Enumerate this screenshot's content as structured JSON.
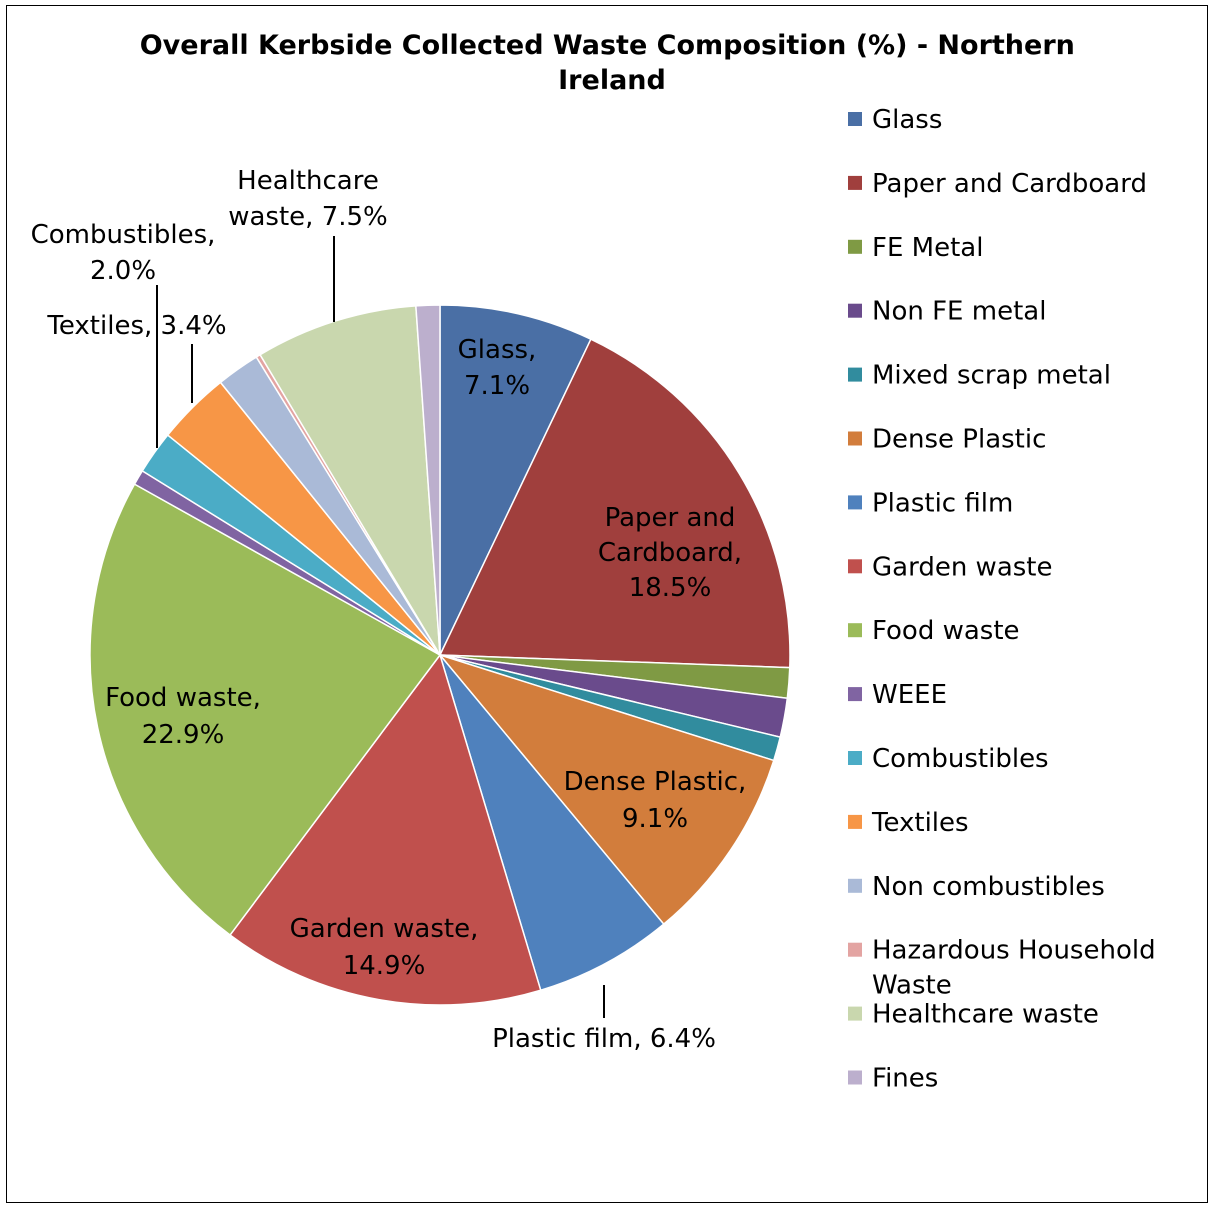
{
  "chart_data": {
    "type": "pie",
    "title": "Overall Kerbside Collected Waste Composition (%) - Northern Ireland",
    "title_lines": [
      "Overall Kerbside Collected Waste Composition (%) - Northern",
      "Ireland"
    ],
    "unit": "%",
    "legend_position": "right",
    "slices": [
      {
        "name": "Glass",
        "value": 7.1,
        "color": "#4A6FA5",
        "label": [
          "Glass,",
          "7.1%"
        ]
      },
      {
        "name": "Paper and Cardboard",
        "value": 18.5,
        "color": "#A03F3D",
        "label": [
          "Paper and",
          "Cardboard,",
          "18.5%"
        ]
      },
      {
        "name": "FE Metal",
        "value": 1.4,
        "color": "#7F9A44",
        "label": null
      },
      {
        "name": "Non FE metal",
        "value": 1.8,
        "color": "#6A4B8C",
        "label": null
      },
      {
        "name": "Mixed scrap metal",
        "value": 1.1,
        "color": "#318C9E",
        "label": null
      },
      {
        "name": "Dense Plastic",
        "value": 9.1,
        "color": "#D27D3C",
        "label": [
          "Dense Plastic,",
          "9.1%"
        ]
      },
      {
        "name": "Plastic film",
        "value": 6.4,
        "color": "#4F81BD",
        "label": [
          "Plastic film, 6.4%"
        ]
      },
      {
        "name": "Garden waste",
        "value": 14.9,
        "color": "#C0504D",
        "label": [
          "Garden waste,",
          "14.9%"
        ]
      },
      {
        "name": "Food waste",
        "value": 22.9,
        "color": "#9BBB59",
        "label": [
          "Food waste,",
          "22.9%"
        ]
      },
      {
        "name": "WEEE",
        "value": 0.7,
        "color": "#8064A2",
        "label": null
      },
      {
        "name": "Combustibles",
        "value": 2.0,
        "color": "#4BACC6",
        "label": [
          "Combustibles,",
          "2.0%"
        ]
      },
      {
        "name": "Textiles",
        "value": 3.4,
        "color": "#F79646",
        "label": [
          "Textiles, 3.4%"
        ]
      },
      {
        "name": "Non combustibles",
        "value": 2.0,
        "color": "#AABAD7",
        "label": null
      },
      {
        "name": "Hazardous Household Waste",
        "value": 0.2,
        "color": "#E3A4A2",
        "label": null
      },
      {
        "name": "Healthcare waste",
        "value": 7.5,
        "color": "#C9D7AE",
        "label": [
          "Healthcare",
          "waste, 7.5%"
        ]
      },
      {
        "name": "Fines",
        "value": 1.1,
        "color": "#BCAFCD",
        "label": null
      }
    ],
    "legend": [
      {
        "name": "Glass",
        "lines": [
          "Glass"
        ],
        "color": "#4A6FA5"
      },
      {
        "name": "Paper and Cardboard",
        "lines": [
          "Paper and Cardboard"
        ],
        "color": "#A03F3D"
      },
      {
        "name": "FE Metal",
        "lines": [
          "FE Metal"
        ],
        "color": "#7F9A44"
      },
      {
        "name": "Non FE metal",
        "lines": [
          "Non FE metal"
        ],
        "color": "#6A4B8C"
      },
      {
        "name": "Mixed scrap metal",
        "lines": [
          "Mixed scrap metal"
        ],
        "color": "#318C9E"
      },
      {
        "name": "Dense Plastic",
        "lines": [
          "Dense Plastic"
        ],
        "color": "#D27D3C"
      },
      {
        "name": "Plastic film",
        "lines": [
          "Plastic film"
        ],
        "color": "#4F81BD"
      },
      {
        "name": "Garden waste",
        "lines": [
          "Garden waste"
        ],
        "color": "#C0504D"
      },
      {
        "name": "Food waste",
        "lines": [
          "Food waste"
        ],
        "color": "#9BBB59"
      },
      {
        "name": "WEEE",
        "lines": [
          "WEEE"
        ],
        "color": "#8064A2"
      },
      {
        "name": "Combustibles",
        "lines": [
          "Combustibles"
        ],
        "color": "#4BACC6"
      },
      {
        "name": "Textiles",
        "lines": [
          "Textiles"
        ],
        "color": "#F79646"
      },
      {
        "name": "Non combustibles",
        "lines": [
          "Non combustibles"
        ],
        "color": "#AABAD7"
      },
      {
        "name": "Hazardous Household Waste",
        "lines": [
          "Hazardous Household",
          "Waste"
        ],
        "color": "#E3A4A2"
      },
      {
        "name": "Healthcare waste",
        "lines": [
          "Healthcare waste"
        ],
        "color": "#C9D7AE"
      },
      {
        "name": "Fines",
        "lines": [
          "Fines"
        ],
        "color": "#BCAFCD"
      }
    ]
  }
}
